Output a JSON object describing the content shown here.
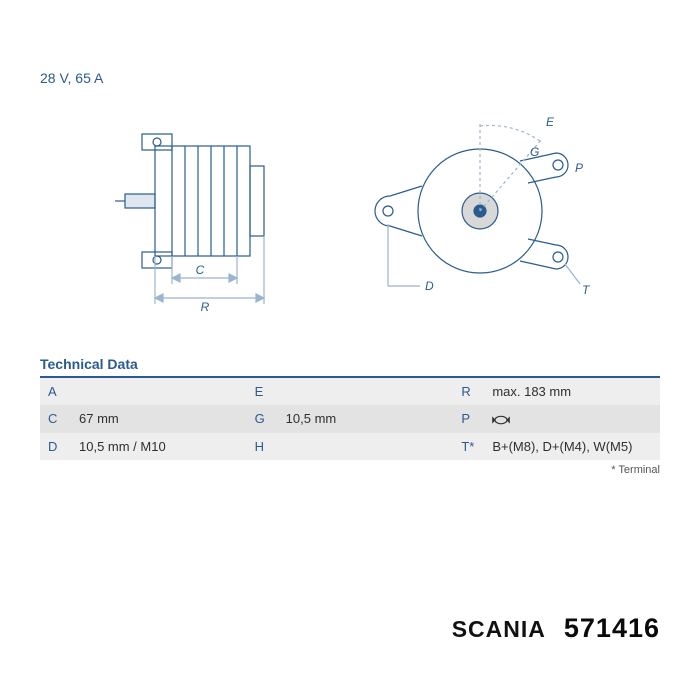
{
  "header": {
    "spec": "28 V, 65 A"
  },
  "diagram": {
    "stroke": "#2a5b8f",
    "light": "#9bb5cf",
    "side": {
      "labels": {
        "C": "C",
        "R": "R"
      }
    },
    "front": {
      "labels": {
        "E": "E",
        "G": "G",
        "P": "P",
        "D": "D",
        "T": "T"
      }
    }
  },
  "table": {
    "title": "Technical Data",
    "rows": [
      {
        "k1": "A",
        "v1": "",
        "k2": "E",
        "v2": "",
        "k3": "R",
        "v3": "max. 183 mm"
      },
      {
        "k1": "C",
        "v1": "67 mm",
        "k2": "G",
        "v2": "10,5 mm",
        "k3": "P",
        "v3": "__ROTATE__"
      },
      {
        "k1": "D",
        "v1": "10,5 mm / M10",
        "k2": "H",
        "v2": "",
        "k3": "T*",
        "v3": "B+(M8), D+(M4), W(M5)"
      }
    ],
    "footnote": "* Terminal"
  },
  "footer": {
    "brand": "SCANIA",
    "partno": "571416"
  }
}
